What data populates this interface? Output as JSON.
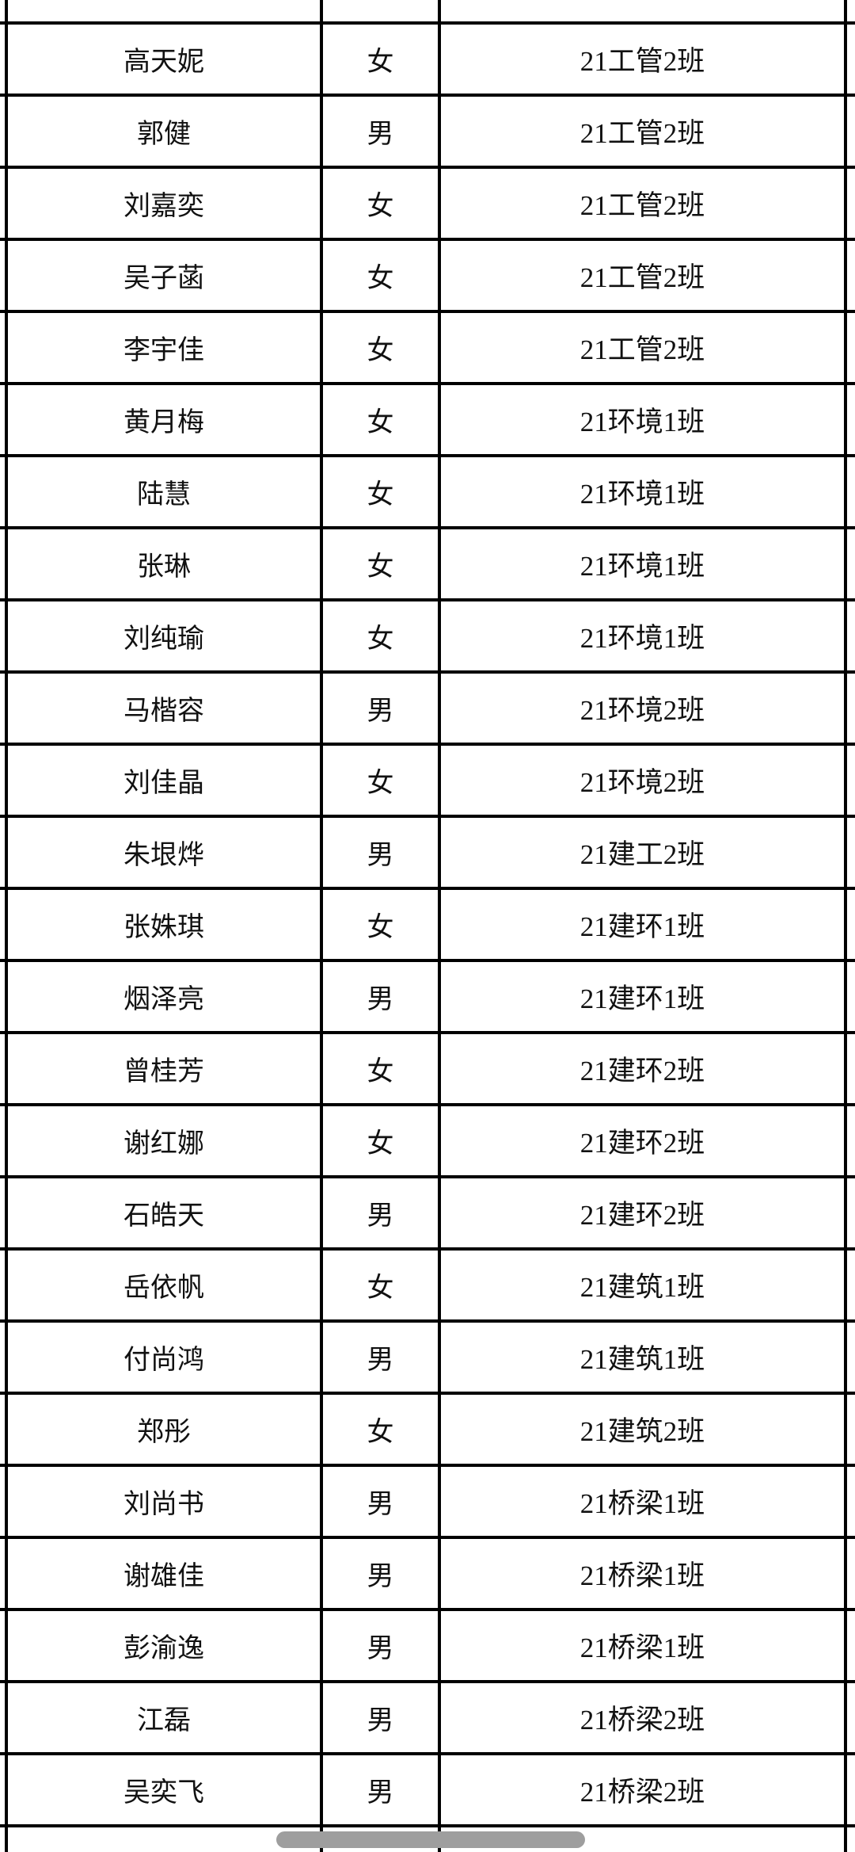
{
  "table": {
    "rows": [
      {
        "name": "高天妮",
        "gender": "女",
        "class_name": "21工管2班"
      },
      {
        "name": "郭健",
        "gender": "男",
        "class_name": "21工管2班"
      },
      {
        "name": "刘嘉奕",
        "gender": "女",
        "class_name": "21工管2班"
      },
      {
        "name": "吴子菡",
        "gender": "女",
        "class_name": "21工管2班"
      },
      {
        "name": "李宇佳",
        "gender": "女",
        "class_name": "21工管2班"
      },
      {
        "name": "黄月梅",
        "gender": "女",
        "class_name": "21环境1班"
      },
      {
        "name": "陆慧",
        "gender": "女",
        "class_name": "21环境1班"
      },
      {
        "name": "张琳",
        "gender": "女",
        "class_name": "21环境1班"
      },
      {
        "name": "刘纯瑜",
        "gender": "女",
        "class_name": "21环境1班"
      },
      {
        "name": "马楷容",
        "gender": "男",
        "class_name": "21环境2班"
      },
      {
        "name": "刘佳晶",
        "gender": "女",
        "class_name": "21环境2班"
      },
      {
        "name": "朱垠烨",
        "gender": "男",
        "class_name": "21建工2班"
      },
      {
        "name": "张姝琪",
        "gender": "女",
        "class_name": "21建环1班"
      },
      {
        "name": "烟泽亮",
        "gender": "男",
        "class_name": "21建环1班"
      },
      {
        "name": "曾桂芳",
        "gender": "女",
        "class_name": "21建环2班"
      },
      {
        "name": "谢红娜",
        "gender": "女",
        "class_name": "21建环2班"
      },
      {
        "name": "石皓天",
        "gender": "男",
        "class_name": "21建环2班"
      },
      {
        "name": "岳依帆",
        "gender": "女",
        "class_name": "21建筑1班"
      },
      {
        "name": "付尚鸿",
        "gender": "男",
        "class_name": "21建筑1班"
      },
      {
        "name": "郑彤",
        "gender": "女",
        "class_name": "21建筑2班"
      },
      {
        "name": "刘尚书",
        "gender": "男",
        "class_name": "21桥梁1班"
      },
      {
        "name": "谢雄佳",
        "gender": "男",
        "class_name": "21桥梁1班"
      },
      {
        "name": "彭渝逸",
        "gender": "男",
        "class_name": "21桥梁1班"
      },
      {
        "name": "江磊",
        "gender": "男",
        "class_name": "21桥梁2班"
      },
      {
        "name": "吴奕飞",
        "gender": "男",
        "class_name": "21桥梁2班"
      }
    ]
  },
  "colors": {
    "border": "#000000",
    "background": "#ffffff",
    "text": "#111111",
    "scrollbar_thumb": "#9e9e9e"
  }
}
